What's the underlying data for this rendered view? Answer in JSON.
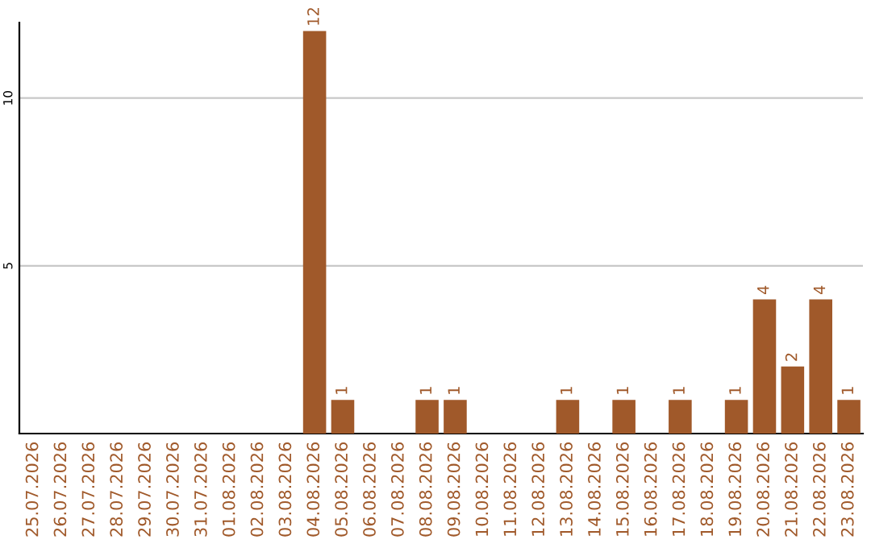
{
  "chart_data": {
    "type": "bar",
    "categories": [
      "25.07.2026",
      "26.07.2026",
      "27.07.2026",
      "28.07.2026",
      "29.07.2026",
      "30.07.2026",
      "31.07.2026",
      "01.08.2026",
      "02.08.2026",
      "03.08.2026",
      "04.08.2026",
      "05.08.2026",
      "06.08.2026",
      "07.08.2026",
      "08.08.2026",
      "09.08.2026",
      "10.08.2026",
      "11.08.2026",
      "12.08.2026",
      "13.08.2026",
      "14.08.2026",
      "15.08.2026",
      "16.08.2026",
      "17.08.2026",
      "18.08.2026",
      "19.08.2026",
      "20.08.2026",
      "21.08.2026",
      "22.08.2026",
      "23.08.2026"
    ],
    "values": [
      0,
      0,
      0,
      0,
      0,
      0,
      0,
      0,
      0,
      0,
      12,
      1,
      0,
      0,
      1,
      1,
      0,
      0,
      0,
      1,
      0,
      1,
      0,
      1,
      0,
      1,
      4,
      2,
      4,
      1
    ],
    "value_labels": [
      null,
      null,
      null,
      null,
      null,
      null,
      null,
      null,
      null,
      null,
      "12",
      "1",
      null,
      null,
      "1",
      "1",
      null,
      null,
      null,
      "1",
      null,
      "1",
      null,
      "1",
      null,
      "1",
      "4",
      "2",
      "4",
      "1"
    ],
    "color": "#a0592a",
    "ylim": [
      0,
      12.25
    ],
    "yticks": [
      5,
      10
    ],
    "grid": "y"
  }
}
